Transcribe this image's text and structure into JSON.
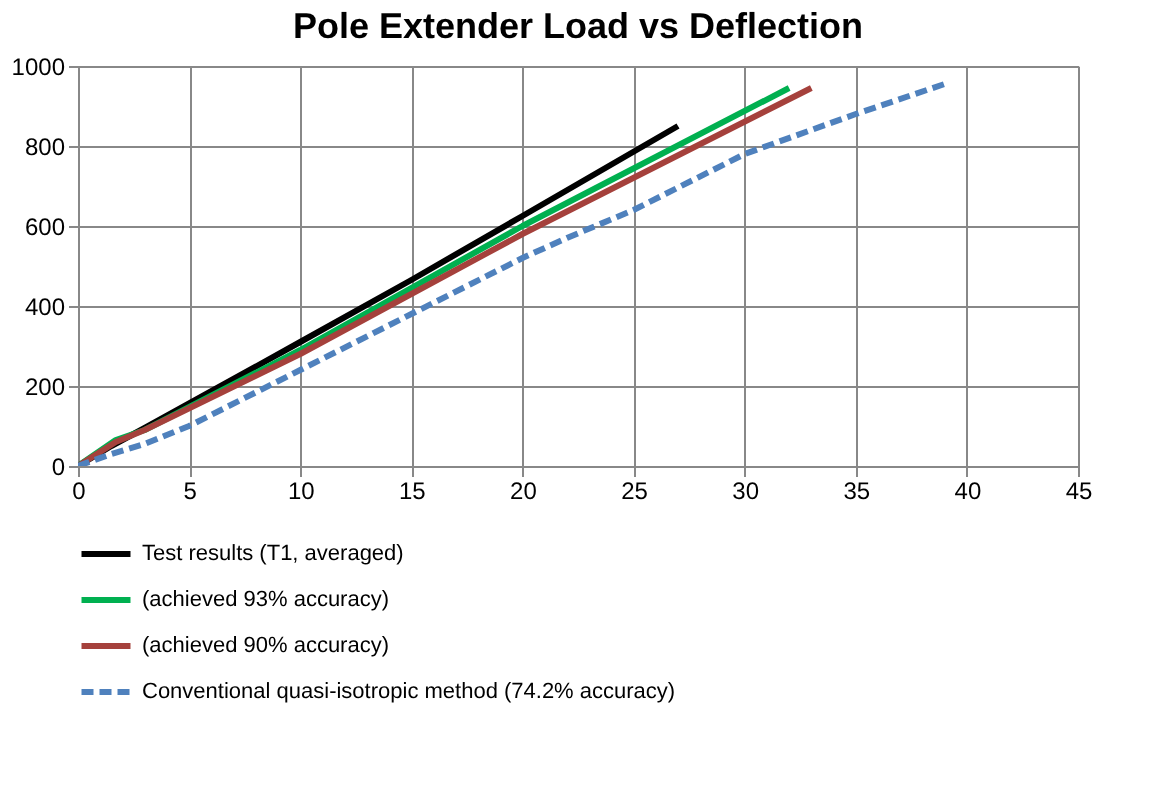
{
  "chart_data": {
    "type": "line",
    "title": "Pole Extender Load vs Deflection",
    "xlim": [
      0,
      45
    ],
    "ylim": [
      0,
      1000
    ],
    "xticks": [
      0,
      5,
      10,
      15,
      20,
      25,
      30,
      35,
      40,
      45
    ],
    "yticks": [
      0,
      200,
      400,
      600,
      800,
      {
        "value": 1000,
        "label": "1000"
      }
    ],
    "grid": true,
    "legend": "bottom",
    "marker": "none",
    "series": [
      {
        "name": "Test results (T1, averaged)",
        "color": "#000000",
        "line_style": "solid",
        "x": [
          0,
          1.5,
          3,
          10,
          15,
          20,
          27
        ],
        "values": [
          0,
          50,
          95,
          310,
          465,
          625,
          850
        ]
      },
      {
        "name": "(achieved 93% accuracy)",
        "color": "#00b050",
        "line_style": "solid",
        "x": [
          0,
          1.7,
          3,
          10,
          20,
          32
        ],
        "values": [
          0,
          65,
          90,
          290,
          600,
          945
        ]
      },
      {
        "name": "(achieved 90% accuracy)",
        "color": "#a5413c",
        "line_style": "solid",
        "x": [
          0,
          1.7,
          3,
          10,
          20,
          33
        ],
        "values": [
          0,
          60,
          90,
          280,
          580,
          945
        ]
      },
      {
        "name": "Conventional quasi-isotropic method (74.2% accuracy)",
        "color": "#4f81bd",
        "line_style": "dashed",
        "x": [
          0,
          1.5,
          3,
          5,
          10,
          15,
          20,
          22,
          25,
          30,
          35,
          39
        ],
        "values": [
          0,
          30,
          55,
          100,
          240,
          380,
          520,
          570,
          640,
          780,
          880,
          955
        ]
      }
    ]
  }
}
